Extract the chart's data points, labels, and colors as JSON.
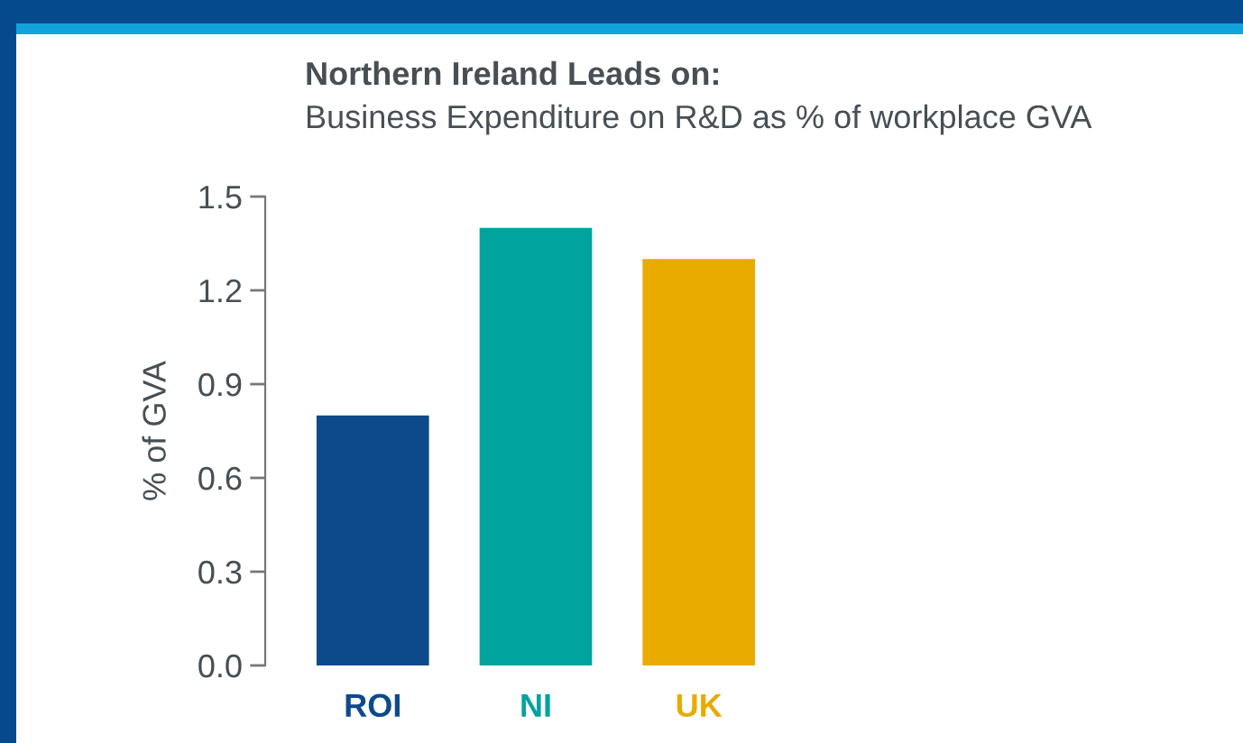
{
  "chart_data": {
    "type": "bar",
    "title": "Northern Ireland Leads on:",
    "subtitle": "Business Expenditure on R&D as % of workplace GVA",
    "ylabel": "% of GVA",
    "categories": [
      "ROI",
      "NI",
      "UK"
    ],
    "values": [
      0.8,
      1.4,
      1.3
    ],
    "colors": [
      "#0d4a8b",
      "#00a39e",
      "#e9ab00"
    ],
    "ylim": [
      0,
      1.5
    ],
    "yticks": [
      {
        "value": 0,
        "label": "0.0"
      },
      0.3,
      0.6,
      0.9,
      1.2,
      1.5
    ]
  }
}
